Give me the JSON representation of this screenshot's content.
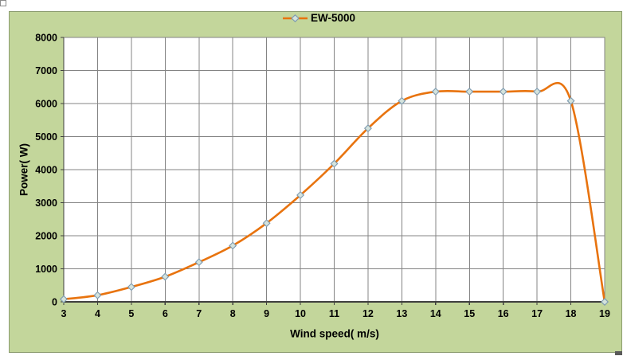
{
  "chart_data": {
    "type": "line",
    "title": "",
    "series": [
      {
        "name": "EW-5000",
        "x": [
          3,
          4,
          5,
          6,
          7,
          8,
          9,
          10,
          11,
          12,
          13,
          14,
          15,
          16,
          17,
          18,
          19
        ],
        "y": [
          80,
          200,
          450,
          760,
          1200,
          1700,
          2380,
          3230,
          4180,
          5250,
          6080,
          6360,
          6360,
          6360,
          6360,
          6080,
          0
        ]
      }
    ],
    "xlabel": "Wind speed( m/s)",
    "ylabel": "Power( W)",
    "xlim": [
      3,
      19
    ],
    "ylim": [
      0,
      8000
    ],
    "x_ticks": [
      3,
      4,
      5,
      6,
      7,
      8,
      9,
      10,
      11,
      12,
      13,
      14,
      15,
      16,
      17,
      18,
      19
    ],
    "y_ticks": [
      0,
      1000,
      2000,
      3000,
      4000,
      5000,
      6000,
      7000,
      8000
    ],
    "grid": true,
    "legend_position": "top-center",
    "line_shape": "smooth",
    "marker": "diamond"
  },
  "colors": {
    "chart_background": "#c3d69b",
    "chart_border": "#8a9b6e",
    "plot_background": "#ffffff",
    "gridline": "#848484",
    "axis_line": "#3f3f3f",
    "series_line": "#e8730e",
    "marker_fill": "#d4e3dd",
    "marker_stroke": "#7d9ab0",
    "text": "#000000"
  }
}
